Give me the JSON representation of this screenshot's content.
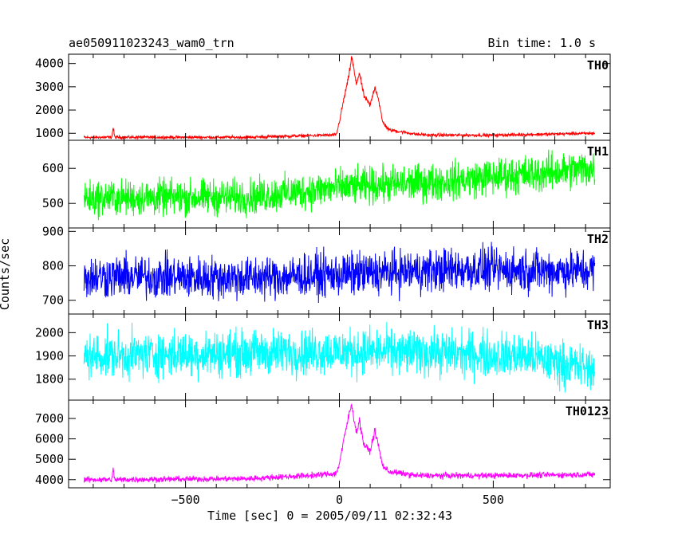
{
  "header": {
    "title": "ae050911023243_wam0_trn",
    "bin_time": "Bin time: 1.0 s"
  },
  "chart_data": {
    "type": "line",
    "xlabel": "Time [sec] 0 = 2005/09/11 02:32:43",
    "ylabel": "Counts/sec",
    "xlim": [
      -880,
      880
    ],
    "x_ticks": [
      -500,
      0,
      500
    ],
    "x_tick_labels": [
      "−500",
      "0",
      "500"
    ],
    "x_range_data": [
      -830,
      830
    ],
    "bin_seconds": 1.0,
    "panels": [
      {
        "name": "TH0",
        "color": "#ff0000",
        "ylim": [
          700,
          4400
        ],
        "yticks": [
          1000,
          2000,
          3000,
          4000
        ],
        "ytick_labels": [
          "1000",
          "2000",
          "3000",
          "4000"
        ],
        "profile": [
          [
            -830,
            820
          ],
          [
            -740,
            830
          ],
          [
            -735,
            1250
          ],
          [
            -730,
            830
          ],
          [
            -300,
            830
          ],
          [
            -100,
            900
          ],
          [
            -10,
            930
          ],
          [
            0,
            1500
          ],
          [
            15,
            2500
          ],
          [
            30,
            3400
          ],
          [
            40,
            4300
          ],
          [
            55,
            3100
          ],
          [
            65,
            3600
          ],
          [
            80,
            2600
          ],
          [
            100,
            2200
          ],
          [
            115,
            3000
          ],
          [
            125,
            2600
          ],
          [
            140,
            1500
          ],
          [
            160,
            1150
          ],
          [
            250,
            960
          ],
          [
            300,
            920
          ],
          [
            500,
            920
          ],
          [
            830,
            1000
          ]
        ]
      },
      {
        "name": "TH1",
        "color": "#00ff00",
        "ylim": [
          430,
          680
        ],
        "yticks": [
          500,
          600
        ],
        "ytick_labels": [
          "500",
          "600"
        ],
        "profile": [
          [
            -830,
            515
          ],
          [
            -300,
            518
          ],
          [
            0,
            545
          ],
          [
            300,
            560
          ],
          [
            830,
            600
          ]
        ]
      },
      {
        "name": "TH2",
        "color": "#0000ff",
        "ylim": [
          660,
          910
        ],
        "yticks": [
          700,
          800,
          900
        ],
        "ytick_labels": [
          "700",
          "800",
          "900"
        ],
        "profile": [
          [
            -830,
            770
          ],
          [
            -300,
            765
          ],
          [
            0,
            775
          ],
          [
            400,
            790
          ],
          [
            830,
            785
          ]
        ]
      },
      {
        "name": "TH3",
        "color": "#00ffff",
        "ylim": [
          1710,
          2080
        ],
        "yticks": [
          1800,
          1900,
          2000
        ],
        "ytick_labels": [
          "1800",
          "1900",
          "2000"
        ],
        "profile": [
          [
            -830,
            1900
          ],
          [
            0,
            1920
          ],
          [
            300,
            1915
          ],
          [
            600,
            1900
          ],
          [
            830,
            1840
          ]
        ]
      },
      {
        "name": "TH0123",
        "color": "#ff00ff",
        "ylim": [
          3600,
          7900
        ],
        "yticks": [
          4000,
          5000,
          6000,
          7000
        ],
        "ytick_labels": [
          "4000",
          "5000",
          "6000",
          "7000"
        ],
        "profile": [
          [
            -830,
            4000
          ],
          [
            -740,
            4000
          ],
          [
            -735,
            4500
          ],
          [
            -730,
            4000
          ],
          [
            -300,
            4050
          ],
          [
            -100,
            4200
          ],
          [
            -10,
            4300
          ],
          [
            0,
            4800
          ],
          [
            15,
            6000
          ],
          [
            30,
            7100
          ],
          [
            40,
            7700
          ],
          [
            55,
            6300
          ],
          [
            65,
            6900
          ],
          [
            80,
            5700
          ],
          [
            100,
            5400
          ],
          [
            115,
            6400
          ],
          [
            125,
            5800
          ],
          [
            140,
            4700
          ],
          [
            160,
            4400
          ],
          [
            250,
            4200
          ],
          [
            500,
            4200
          ],
          [
            830,
            4250
          ]
        ]
      }
    ],
    "grid": false,
    "legend": "none"
  }
}
